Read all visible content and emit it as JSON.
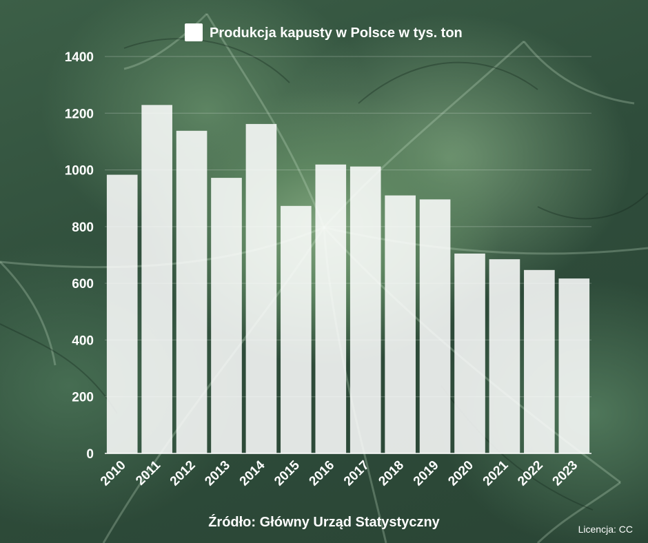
{
  "chart_data": {
    "type": "bar",
    "title": "",
    "xlabel": "",
    "ylabel": "",
    "ylim": [
      0,
      1400
    ],
    "yticks": [
      0,
      200,
      400,
      600,
      800,
      1000,
      1200,
      1400
    ],
    "grid": true,
    "legend_position": "top-center",
    "categories": [
      "2010",
      "2011",
      "2012",
      "2013",
      "2014",
      "2015",
      "2016",
      "2017",
      "2018",
      "2019",
      "2020",
      "2021",
      "2022",
      "2023"
    ],
    "series": [
      {
        "name": "Produkcja kapusty w Polsce w tys. ton",
        "color": "#ffffff",
        "values": [
          983,
          1229,
          1138,
          972,
          1162,
          873,
          1019,
          1012,
          910,
          896,
          705,
          685,
          647,
          617
        ]
      }
    ]
  },
  "footer": {
    "source": "Źródło: Główny Urząd Statystyczny",
    "license": "Licencja: CC"
  },
  "colors": {
    "bar": "#ffffff",
    "text": "#ffffff",
    "background": "#3c5f47"
  }
}
